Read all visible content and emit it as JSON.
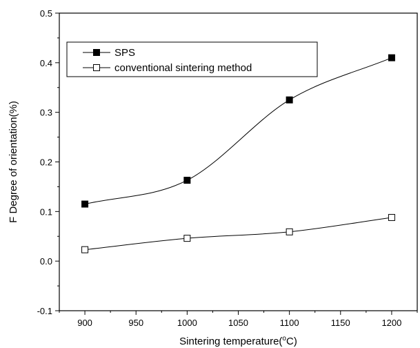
{
  "chart_data": {
    "type": "line",
    "xlabel": "Sintering temperature(°C)",
    "ylabel": "F Degree of orientation(%)",
    "xlim": [
      875,
      1225
    ],
    "ylim": [
      -0.1,
      0.5
    ],
    "x_ticks": [
      900,
      950,
      1000,
      1050,
      1100,
      1150,
      1200
    ],
    "y_ticks": [
      -0.1,
      0.0,
      0.1,
      0.2,
      0.3,
      0.4,
      0.5
    ],
    "x_tick_labels": [
      "900",
      "950",
      "1000",
      "1050",
      "1100",
      "1150",
      "1200"
    ],
    "y_tick_labels": [
      "-0.1",
      "0.0",
      "0.1",
      "0.2",
      "0.3",
      "0.4",
      "0.5"
    ],
    "grid": false,
    "legend_position": "top-left",
    "series": [
      {
        "name": "SPS",
        "marker": "filled-square",
        "color": "#000000",
        "x": [
          900,
          1000,
          1100,
          1200
        ],
        "y": [
          0.115,
          0.163,
          0.325,
          0.41
        ]
      },
      {
        "name": "conventional sintering method",
        "marker": "open-square",
        "color": "#000000",
        "x": [
          900,
          1000,
          1100,
          1200
        ],
        "y": [
          0.023,
          0.046,
          0.059,
          0.088
        ]
      }
    ]
  }
}
